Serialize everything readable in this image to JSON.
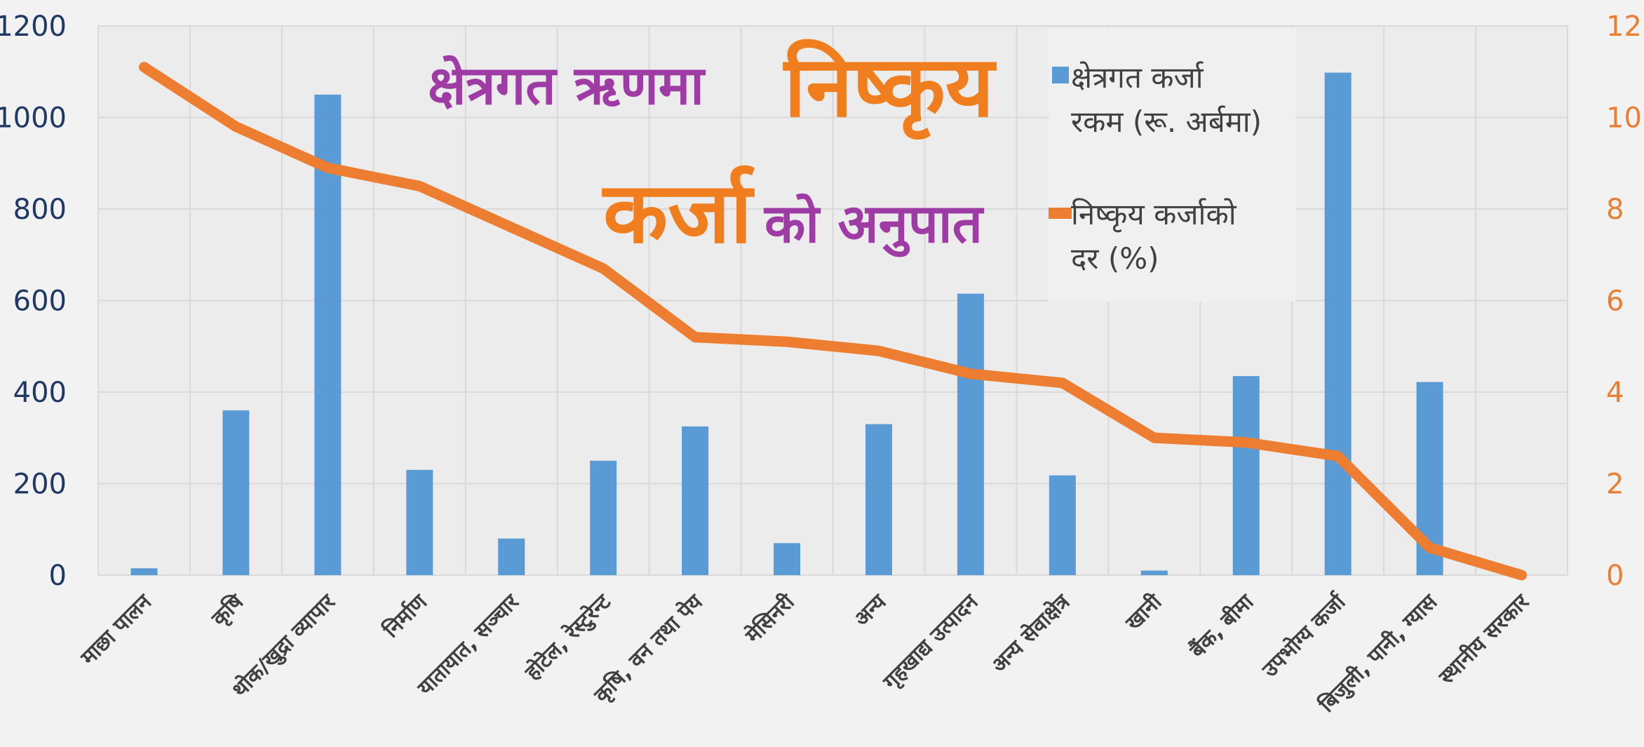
{
  "chart_data": {
    "type": "bar",
    "title_parts": {
      "line1_a": "क्षेत्रगत ऋणमा",
      "line1_b": "निष्कृय",
      "line2_a": "कर्जा",
      "line2_b": "को अनुपात"
    },
    "categories": [
      "माछा पालन",
      "कृषि",
      "थोक/खुद्रा व्यापार",
      "निर्माण",
      "यातायात, सञ्चार",
      "होटेल, रेस्टुरेन्ट",
      "कृषि, वन तथा पेय",
      "मेसिनरी",
      "अन्य",
      "गृहखाद्य उत्पादन",
      "अन्य सेवाक्षेत्र",
      "खानी",
      "बैंक, बीमा",
      "उपभोग्य कर्जा",
      "बिजुली, पानी, ग्यास",
      "स्थानीय सरकार"
    ],
    "series": [
      {
        "name": "क्षेत्रगत कर्जा रकम (रू. अर्बमा)",
        "type": "bar",
        "axis": "left",
        "color": "#5b9bd5",
        "values": [
          15,
          360,
          1050,
          230,
          80,
          250,
          325,
          70,
          330,
          615,
          218,
          10,
          435,
          1098,
          422,
          0
        ]
      },
      {
        "name": "निष्कृय कर्जाको दर (%)",
        "type": "line",
        "axis": "right",
        "color": "#ed7d31",
        "values": [
          11.1,
          9.8,
          8.9,
          8.5,
          7.6,
          6.7,
          5.2,
          5.1,
          4.9,
          4.4,
          4.2,
          3.0,
          2.9,
          2.6,
          0.6,
          0.0
        ]
      }
    ],
    "left_axis": {
      "ylim": [
        0,
        1200
      ],
      "ticks": [
        0,
        200,
        400,
        600,
        800,
        1000,
        1200
      ],
      "color": "#1f3864"
    },
    "right_axis": {
      "ylim": [
        0,
        12
      ],
      "ticks": [
        0,
        2,
        4,
        6,
        8,
        10,
        12
      ],
      "color": "#ed7d31"
    },
    "grid": true,
    "legend": {
      "position": "top-right",
      "bar_lines": [
        "क्षेत्रगत कर्जा",
        "रकम (रू. अर्बमा)"
      ],
      "line_lines": [
        "निष्कृय कर्जाको",
        "दर (%)"
      ]
    }
  }
}
